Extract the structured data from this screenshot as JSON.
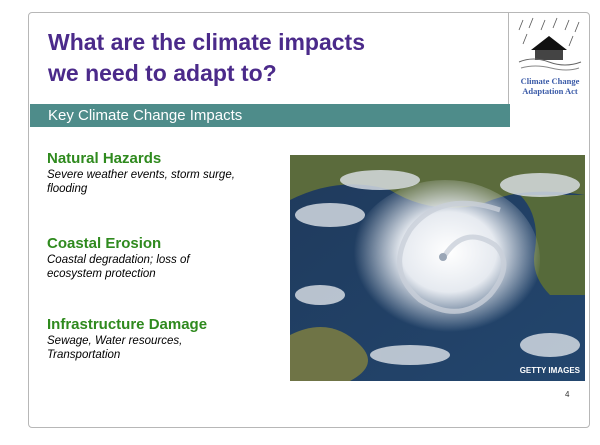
{
  "slide": {
    "title_lines": [
      "What are the climate impacts",
      "we need to adapt to?"
    ],
    "logo_caption_lines": [
      "Climate Change",
      "Adaptation Act"
    ],
    "section_header": "Key Climate Change Impacts",
    "items": [
      {
        "heading": "Natural Hazards",
        "description": "Severe weather events, storm surge, flooding"
      },
      {
        "heading": "Coastal Erosion",
        "description": "Coastal degradation; loss of ecosystem protection"
      },
      {
        "heading": "Infrastructure Damage",
        "description": "Sewage, Water resources, Transportation"
      }
    ],
    "image_credit": "GETTY IMAGES",
    "page_number": "4"
  }
}
